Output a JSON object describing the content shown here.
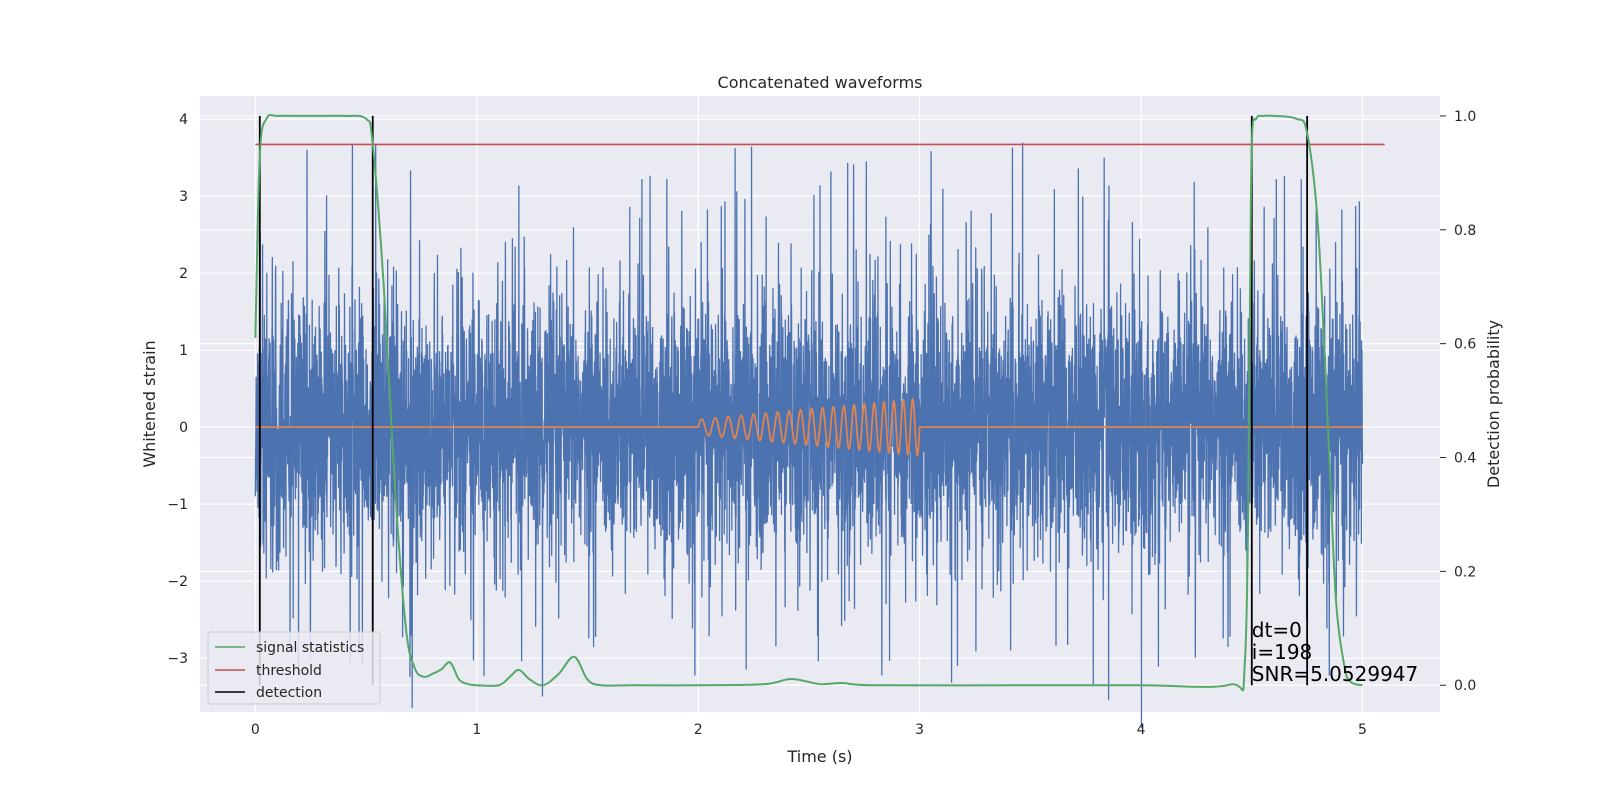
{
  "chart_data": {
    "type": "line",
    "title": "Concatenated waveforms",
    "xlabel": "Time (s)",
    "ylabel": "Whitened strain",
    "y2label": "Detection probability",
    "xlim": [
      -0.25,
      5.35
    ],
    "ylim": [
      -3.7,
      4.3
    ],
    "y2lim": [
      -0.047,
      1.035
    ],
    "x_ticks": [
      0,
      1,
      2,
      3,
      4,
      5
    ],
    "y_ticks": [
      -3,
      -2,
      -1,
      0,
      1,
      2,
      3,
      4
    ],
    "y2_ticks": [
      0.0,
      0.2,
      0.4,
      0.6,
      0.8,
      1.0
    ],
    "grid": true,
    "legend_position": "lower-left",
    "series": [
      {
        "key": "noise",
        "axis": "left",
        "color": "#4c72b0",
        "x_range": [
          0,
          5
        ],
        "typical_amplitude": 1.5,
        "peak_amplitude": 3.9
      },
      {
        "key": "chirp",
        "axis": "left",
        "color": "#dd8452",
        "x_range": [
          0,
          5
        ],
        "chirp_start": 2.0,
        "chirp_end": 3.0,
        "amplitude_start": 0.1,
        "amplitude_end": 0.37
      },
      {
        "name": "signal statistics",
        "axis": "right",
        "color": "#55a868",
        "x": [
          0.0,
          0.02,
          0.05,
          0.1,
          0.2,
          0.3,
          0.4,
          0.5,
          0.53,
          0.58,
          0.63,
          0.68,
          0.72,
          0.76,
          0.8,
          0.84,
          0.88,
          0.92,
          0.96,
          1.0,
          1.1,
          1.15,
          1.19,
          1.24,
          1.3,
          1.37,
          1.44,
          1.5,
          1.56,
          1.7,
          2.0,
          2.3,
          2.42,
          2.55,
          2.65,
          2.8,
          3.5,
          4.0,
          4.4,
          4.47,
          4.49,
          4.5,
          4.52,
          4.55,
          4.6,
          4.7,
          4.75,
          4.8,
          4.85,
          4.88,
          4.92,
          4.95,
          5.0
        ],
        "y": [
          0.61,
          0.93,
          0.995,
          1.0,
          1.0,
          1.0,
          1.0,
          0.995,
          0.95,
          0.7,
          0.35,
          0.1,
          0.03,
          0.015,
          0.02,
          0.028,
          0.04,
          0.01,
          0.002,
          0.0,
          0.0,
          0.015,
          0.027,
          0.01,
          0.0,
          0.02,
          0.05,
          0.01,
          0.0,
          0.0,
          0.0,
          0.002,
          0.011,
          0.002,
          0.004,
          0.0,
          0.0,
          0.0,
          0.001,
          0.05,
          0.6,
          0.95,
          0.995,
          1.0,
          1.0,
          0.995,
          0.97,
          0.8,
          0.4,
          0.15,
          0.03,
          0.005,
          0.0
        ]
      },
      {
        "name": "threshold",
        "axis": "right",
        "color": "#c44e52",
        "x": [
          0.0,
          5.1
        ],
        "y": [
          0.95,
          0.95
        ]
      },
      {
        "name": "detection",
        "axis": "right",
        "color": "#000000",
        "type": "vlines",
        "x": [
          0.02,
          0.53,
          4.5,
          4.75
        ],
        "ymin": 0.0,
        "ymax": 1.0
      }
    ],
    "annotations": [
      "dt=0",
      "i=198",
      "SNR=5.0529947"
    ],
    "annotation_position": {
      "x": 4.5,
      "y2": 0.0
    }
  }
}
